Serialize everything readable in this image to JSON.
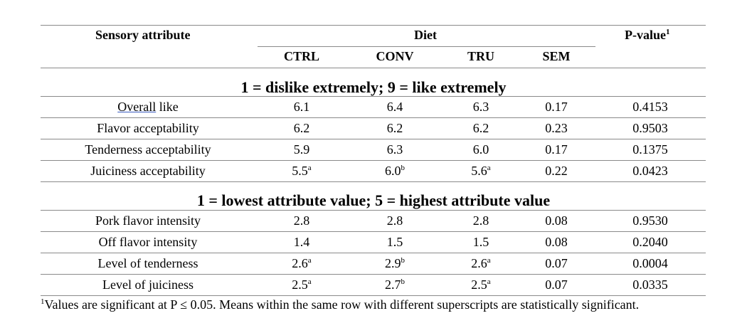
{
  "header": {
    "attribute_label": "Sensory attribute",
    "diet_label": "Diet",
    "pvalue_label": "P-value",
    "pvalue_sup": "1",
    "columns": [
      "CTRL",
      "CONV",
      "TRU",
      "SEM"
    ]
  },
  "sections": [
    {
      "title": "1 = dislike extremely; 9 = like extremely",
      "rows": [
        {
          "attribute": "Overall like",
          "ctrl": "6.1",
          "ctrl_sup": "",
          "conv": "6.4",
          "conv_sup": "",
          "tru": "6.3",
          "tru_sup": "",
          "sem": "0.17",
          "p": "0.4153"
        },
        {
          "attribute": "Flavor acceptability",
          "ctrl": "6.2",
          "ctrl_sup": "",
          "conv": "6.2",
          "conv_sup": "",
          "tru": "6.2",
          "tru_sup": "",
          "sem": "0.23",
          "p": "0.9503"
        },
        {
          "attribute": "Tenderness acceptability",
          "ctrl": "5.9",
          "ctrl_sup": "",
          "conv": "6.3",
          "conv_sup": "",
          "tru": "6.0",
          "tru_sup": "",
          "sem": "0.17",
          "p": "0.1375"
        },
        {
          "attribute": "Juiciness acceptability",
          "ctrl": "5.5",
          "ctrl_sup": "a",
          "conv": "6.0",
          "conv_sup": "b",
          "tru": "5.6",
          "tru_sup": "a",
          "sem": "0.22",
          "p": "0.0423"
        }
      ]
    },
    {
      "title": "1 = lowest attribute value; 5 = highest attribute value",
      "rows": [
        {
          "attribute": "Pork flavor intensity",
          "ctrl": "2.8",
          "ctrl_sup": "",
          "conv": "2.8",
          "conv_sup": "",
          "tru": "2.8",
          "tru_sup": "",
          "sem": "0.08",
          "p": "0.9530"
        },
        {
          "attribute": "Off flavor intensity",
          "ctrl": "1.4",
          "ctrl_sup": "",
          "conv": "1.5",
          "conv_sup": "",
          "tru": "1.5",
          "tru_sup": "",
          "sem": "0.08",
          "p": "0.2040"
        },
        {
          "attribute": "Level of tenderness",
          "ctrl": "2.6",
          "ctrl_sup": "a",
          "conv": "2.9",
          "conv_sup": "b",
          "tru": "2.6",
          "tru_sup": "a",
          "sem": "0.07",
          "p": "0.0004"
        },
        {
          "attribute": "Level of juiciness",
          "ctrl": "2.5",
          "ctrl_sup": "a",
          "conv": "2.7",
          "conv_sup": "b",
          "tru": "2.5",
          "tru_sup": "a",
          "sem": "0.07",
          "p": "0.0335"
        }
      ]
    }
  ],
  "footnote": {
    "sup": "1",
    "text": "Values are significant at P ≤ 0.05. Means within the same row with different superscripts are statistically significant."
  }
}
